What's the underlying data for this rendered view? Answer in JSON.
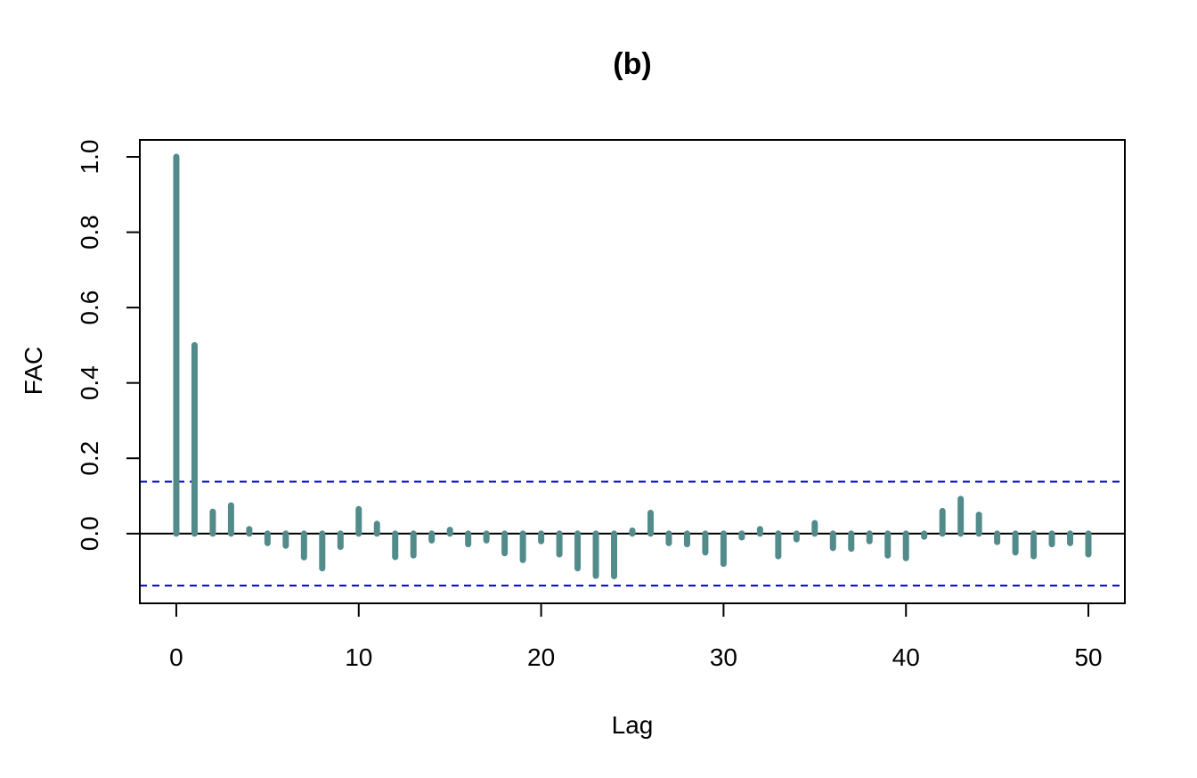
{
  "chart_data": {
    "type": "bar",
    "title": "(b)",
    "xlabel": "Lag",
    "ylabel": "FAC",
    "xlim": [
      -2,
      52
    ],
    "ylim": [
      -0.185,
      1.045
    ],
    "x_ticks": [
      0,
      10,
      20,
      30,
      40,
      50
    ],
    "y_ticks": [
      0.0,
      0.2,
      0.4,
      0.6,
      0.8,
      1.0
    ],
    "y_tick_labels": [
      "0.0",
      "0.2",
      "0.4",
      "0.6",
      "0.8",
      "1.0"
    ],
    "confidence_limits": [
      0.138,
      -0.138
    ],
    "bar_color": "#538B8B",
    "ci_color": "#0000CD",
    "grid": false,
    "lags": [
      0,
      1,
      2,
      3,
      4,
      5,
      6,
      7,
      8,
      9,
      10,
      11,
      12,
      13,
      14,
      15,
      16,
      17,
      18,
      19,
      20,
      21,
      22,
      23,
      24,
      25,
      26,
      27,
      28,
      29,
      30,
      31,
      32,
      33,
      34,
      35,
      36,
      37,
      38,
      39,
      40,
      41,
      42,
      43,
      44,
      45,
      46,
      47,
      48,
      49,
      50
    ],
    "values": [
      1.0,
      0.5,
      0.058,
      0.075,
      0.012,
      -0.025,
      -0.032,
      -0.063,
      -0.092,
      -0.035,
      0.065,
      0.026,
      -0.062,
      -0.058,
      -0.018,
      0.01,
      -0.028,
      -0.018,
      -0.052,
      -0.07,
      -0.02,
      -0.055,
      -0.092,
      -0.112,
      -0.113,
      0.008,
      0.055,
      -0.025,
      -0.028,
      -0.05,
      -0.08,
      -0.01,
      0.012,
      -0.06,
      -0.015,
      0.028,
      -0.038,
      -0.04,
      -0.02,
      -0.058,
      -0.065,
      -0.008,
      0.06,
      0.092,
      0.05,
      -0.022,
      -0.05,
      -0.06,
      -0.028,
      -0.025,
      -0.055
    ]
  }
}
